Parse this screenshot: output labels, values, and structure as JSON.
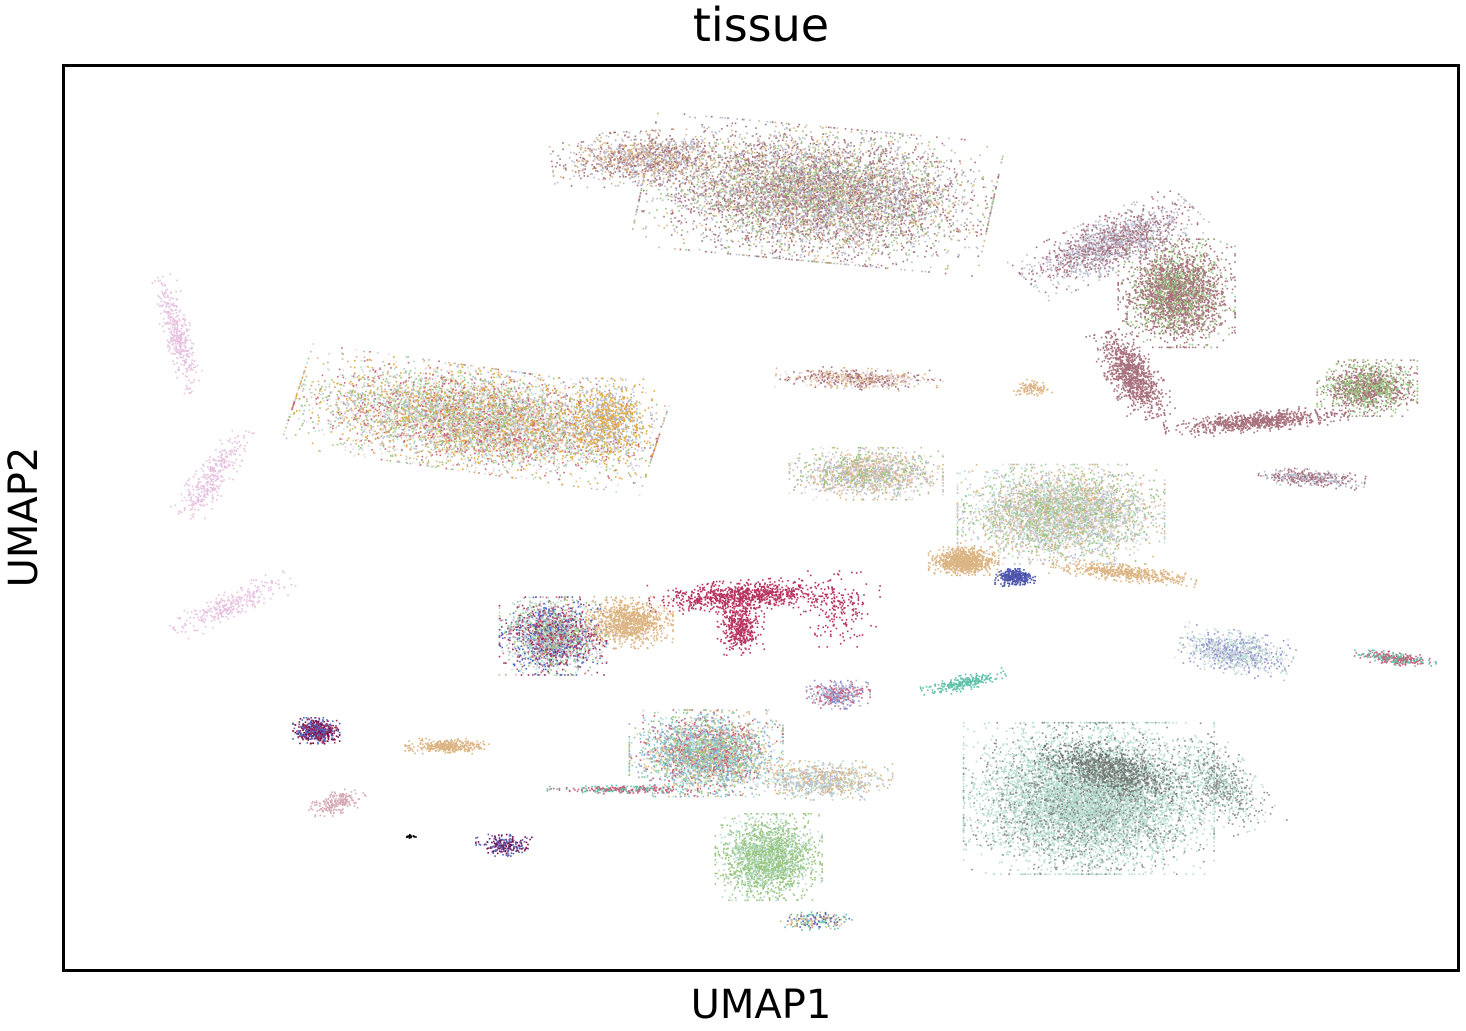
{
  "chart_data": {
    "type": "scatter",
    "title": "tissue",
    "xlabel": "UMAP1",
    "ylabel": "UMAP2",
    "xlim": [
      0,
      100
    ],
    "ylim": [
      0,
      100
    ],
    "grid": false,
    "legend": "none",
    "point_size": "tiny",
    "clusters": [
      {
        "cx": 24.8,
        "cy": 14.8,
        "rx": 0.3,
        "ry": 0.2,
        "rot": 0,
        "n": 20,
        "colors": [
          "#000000"
        ]
      },
      {
        "cx": 41.5,
        "cy": 90.0,
        "rx": 5.5,
        "ry": 2.5,
        "rot": 5,
        "n": 1200,
        "colors": [
          "#b9bcd0",
          "#dcb584",
          "#a8727d"
        ]
      },
      {
        "cx": 54.0,
        "cy": 86.0,
        "rx": 10.5,
        "ry": 6.2,
        "rot": -8,
        "n": 7000,
        "colors": [
          "#b9bcd0",
          "#a8727d",
          "#b9bcd0",
          "#a8727d",
          "#dcb584",
          "#98c57f"
        ]
      },
      {
        "cx": 75.0,
        "cy": 80.5,
        "rx": 6.0,
        "ry": 2.4,
        "rot": 35,
        "n": 1600,
        "colors": [
          "#a8727d",
          "#b9bcd0"
        ]
      },
      {
        "cx": 79.8,
        "cy": 75.0,
        "rx": 3.5,
        "ry": 5.0,
        "rot": 0,
        "n": 2600,
        "colors": [
          "#a8727d",
          "#a8727d",
          "#98c57f"
        ]
      },
      {
        "cx": 76.6,
        "cy": 66.0,
        "rx": 1.6,
        "ry": 4.2,
        "rot": 20,
        "n": 1000,
        "colors": [
          "#a8727d"
        ]
      },
      {
        "cx": 85.5,
        "cy": 60.8,
        "rx": 5.5,
        "ry": 1.0,
        "rot": 8,
        "n": 800,
        "colors": [
          "#a8727d"
        ]
      },
      {
        "cx": 93.5,
        "cy": 64.5,
        "rx": 3.0,
        "ry": 2.6,
        "rot": 0,
        "n": 1300,
        "colors": [
          "#a8727d",
          "#98c57f"
        ]
      },
      {
        "cx": 89.5,
        "cy": 54.5,
        "rx": 3.2,
        "ry": 0.8,
        "rot": -6,
        "n": 400,
        "colors": [
          "#a8727d",
          "#b9bcd0"
        ]
      },
      {
        "cx": 8.0,
        "cy": 70.5,
        "rx": 0.9,
        "ry": 5.5,
        "rot": 10,
        "n": 400,
        "colors": [
          "#e7c1e0"
        ]
      },
      {
        "cx": 10.5,
        "cy": 54.5,
        "rx": 1.2,
        "ry": 4.8,
        "rot": -25,
        "n": 350,
        "colors": [
          "#e7c1e0"
        ]
      },
      {
        "cx": 12.0,
        "cy": 40.5,
        "rx": 4.2,
        "ry": 1.2,
        "rot": 35,
        "n": 300,
        "colors": [
          "#e7c1e0"
        ]
      },
      {
        "cx": 29.5,
        "cy": 61.0,
        "rx": 11.0,
        "ry": 4.8,
        "rot": -12,
        "n": 6500,
        "colors": [
          "#dcb584",
          "#e6d6dc",
          "#b6ddcf",
          "#b9bcd0",
          "#98c57f",
          "#c9627a",
          "#e2a63a"
        ]
      },
      {
        "cx": 39.0,
        "cy": 61.0,
        "rx": 2.6,
        "ry": 3.8,
        "rot": 0,
        "n": 900,
        "colors": [
          "#e2a63a",
          "#b9bcd0"
        ]
      },
      {
        "cx": 57.0,
        "cy": 65.5,
        "rx": 5.0,
        "ry": 1.0,
        "rot": -3,
        "n": 600,
        "colors": [
          "#dcb584",
          "#e6d6dc",
          "#a8727d"
        ]
      },
      {
        "cx": 69.5,
        "cy": 64.5,
        "rx": 1.2,
        "ry": 0.8,
        "rot": 0,
        "n": 100,
        "colors": [
          "#dcb584"
        ]
      },
      {
        "cx": 57.5,
        "cy": 55.0,
        "rx": 4.6,
        "ry": 2.4,
        "rot": 0,
        "n": 1500,
        "colors": [
          "#b9bcd0",
          "#e6d6dc",
          "#dcb584",
          "#98c57f"
        ]
      },
      {
        "cx": 71.5,
        "cy": 50.5,
        "rx": 6.2,
        "ry": 4.6,
        "rot": 0,
        "n": 4200,
        "colors": [
          "#dcb584",
          "#b9bcd0",
          "#e6d6dc",
          "#98c57f",
          "#b6ddcf"
        ]
      },
      {
        "cx": 64.5,
        "cy": 45.3,
        "rx": 2.1,
        "ry": 1.3,
        "rot": 0,
        "n": 900,
        "colors": [
          "#dcb584"
        ]
      },
      {
        "cx": 68.2,
        "cy": 43.5,
        "rx": 1.2,
        "ry": 0.8,
        "rot": 0,
        "n": 350,
        "colors": [
          "#4450a8",
          "#5a5fb3"
        ]
      },
      {
        "cx": 76.0,
        "cy": 44.0,
        "rx": 4.4,
        "ry": 0.8,
        "rot": -10,
        "n": 500,
        "colors": [
          "#dcb584"
        ]
      },
      {
        "cx": 35.0,
        "cy": 37.0,
        "rx": 3.2,
        "ry": 3.6,
        "rot": 0,
        "n": 2400,
        "colors": [
          "#c9627a",
          "#b9bcd0",
          "#98c57f",
          "#9c2e5a",
          "#4b68c6",
          "#b6ddcf"
        ]
      },
      {
        "cx": 40.5,
        "cy": 38.5,
        "rx": 2.6,
        "ry": 2.4,
        "rot": 0,
        "n": 1000,
        "colors": [
          "#dcb584"
        ]
      },
      {
        "cx": 48.5,
        "cy": 41.5,
        "rx": 5.5,
        "ry": 1.4,
        "rot": 5,
        "n": 900,
        "colors": [
          "#b8335f"
        ]
      },
      {
        "cx": 48.5,
        "cy": 38.0,
        "rx": 1.4,
        "ry": 2.6,
        "rot": 0,
        "n": 450,
        "colors": [
          "#b8335f"
        ]
      },
      {
        "cx": 84.0,
        "cy": 35.2,
        "rx": 3.5,
        "ry": 2.0,
        "rot": -15,
        "n": 900,
        "colors": [
          "#8f8fd0",
          "#d7e3e6",
          "#b6ddcf",
          "#b9bcd0"
        ]
      },
      {
        "cx": 95.5,
        "cy": 34.5,
        "rx": 2.5,
        "ry": 0.6,
        "rot": -10,
        "n": 300,
        "colors": [
          "#c9627a",
          "#62bfa9"
        ]
      },
      {
        "cx": 64.5,
        "cy": 31.8,
        "rx": 2.6,
        "ry": 0.7,
        "rot": 20,
        "n": 250,
        "colors": [
          "#62bfa9"
        ]
      },
      {
        "cx": 55.5,
        "cy": 30.5,
        "rx": 1.9,
        "ry": 1.3,
        "rot": 0,
        "n": 400,
        "colors": [
          "#b9bcd0",
          "#c9627a",
          "#8f8fd0"
        ]
      },
      {
        "cx": 54.0,
        "cy": 21.0,
        "rx": 4.5,
        "ry": 1.8,
        "rot": 0,
        "n": 800,
        "colors": [
          "#dcb584",
          "#b6ddcf",
          "#b9bcd0"
        ]
      },
      {
        "cx": 46.0,
        "cy": 24.0,
        "rx": 4.6,
        "ry": 4.0,
        "rot": 0,
        "n": 3200,
        "colors": [
          "#8fa5d6",
          "#dcb584",
          "#7fcbd6",
          "#c9627a",
          "#b6ddcf",
          "#98c57f"
        ]
      },
      {
        "cx": 40.0,
        "cy": 20.0,
        "rx": 4.5,
        "ry": 0.4,
        "rot": 0,
        "n": 250,
        "colors": [
          "#62bfa9",
          "#c9627a"
        ]
      },
      {
        "cx": 27.5,
        "cy": 24.8,
        "rx": 2.6,
        "ry": 0.7,
        "rot": 0,
        "n": 350,
        "colors": [
          "#dcb584"
        ]
      },
      {
        "cx": 18.0,
        "cy": 26.5,
        "rx": 1.4,
        "ry": 1.2,
        "rot": 0,
        "n": 550,
        "colors": [
          "#7a1050",
          "#9c2e5a",
          "#4b68c6"
        ]
      },
      {
        "cx": 19.5,
        "cy": 18.5,
        "rx": 1.8,
        "ry": 1.0,
        "rot": 30,
        "n": 200,
        "colors": [
          "#d6a9b6"
        ]
      },
      {
        "cx": 31.5,
        "cy": 13.8,
        "rx": 1.7,
        "ry": 1.0,
        "rot": 0,
        "n": 220,
        "colors": [
          "#5a5fb3",
          "#7a1050"
        ]
      },
      {
        "cx": 73.5,
        "cy": 19.0,
        "rx": 7.5,
        "ry": 7.0,
        "rot": 0,
        "n": 8000,
        "colors": [
          "#b6ddcf",
          "#b6ddcf",
          "#b6ddcf",
          "#8a8f8c"
        ]
      },
      {
        "cx": 75.0,
        "cy": 22.0,
        "rx": 4.5,
        "ry": 2.2,
        "rot": -25,
        "n": 900,
        "colors": [
          "#8a8f8c",
          "#6d7370"
        ]
      },
      {
        "cx": 83.0,
        "cy": 20.5,
        "rx": 2.2,
        "ry": 4.6,
        "rot": 25,
        "n": 700,
        "colors": [
          "#b6ddcf",
          "#8a8f8c"
        ]
      },
      {
        "cx": 50.5,
        "cy": 12.5,
        "rx": 3.2,
        "ry": 4.0,
        "rot": 0,
        "n": 2000,
        "colors": [
          "#98c57f",
          "#98c57f",
          "#b6ddcf"
        ]
      },
      {
        "cx": 54.0,
        "cy": 5.5,
        "rx": 2.2,
        "ry": 0.9,
        "rot": 0,
        "n": 180,
        "colors": [
          "#62bfa9",
          "#5a5fb3",
          "#dcb584"
        ]
      },
      {
        "cx": 55.5,
        "cy": 40.0,
        "rx": 2.5,
        "ry": 3.5,
        "rot": 0,
        "n": 200,
        "colors": [
          "#b8335f"
        ]
      }
    ]
  }
}
